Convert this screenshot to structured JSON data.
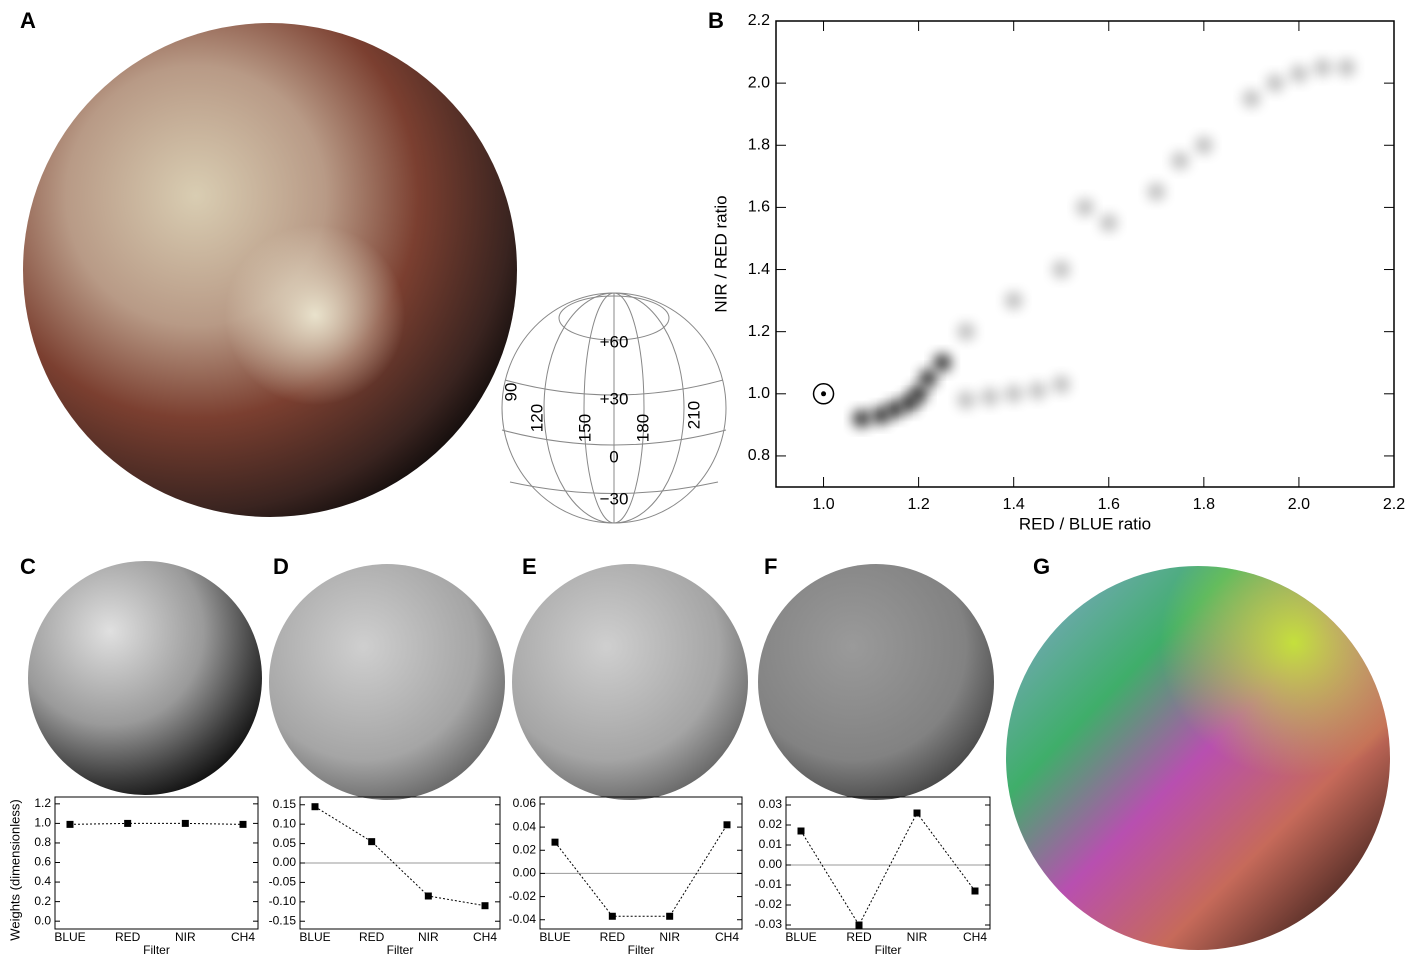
{
  "panels": {
    "a": "A",
    "b": "B",
    "c": "C",
    "d": "D",
    "e": "E",
    "f": "F",
    "g": "G"
  },
  "globe_grid": {
    "lat_labels": [
      "+60",
      "+30",
      "0",
      "−30"
    ],
    "lon_labels": [
      "90",
      "120",
      "150",
      "180",
      "210"
    ]
  },
  "chart_data": [
    {
      "type": "scatter",
      "x_label": "RED / BLUE ratio",
      "y_label": "NIR / RED ratio",
      "color": "#000000",
      "xlim": [
        0.9,
        2.2
      ],
      "ylim": [
        0.7,
        2.2
      ],
      "xticks": [
        {
          "value": 1,
          "label": "1.0"
        },
        1.2,
        1.4,
        1.6,
        1.8,
        {
          "value": 2,
          "label": "2.0"
        },
        2.2
      ],
      "yticks": [
        0.8,
        {
          "value": 1,
          "label": "1.0"
        },
        1.2,
        1.4,
        1.6,
        1.8,
        {
          "value": 2,
          "label": "2.0"
        },
        2.2
      ],
      "x": [
        1.08,
        1.12,
        1.15,
        1.18,
        1.2,
        1.22,
        1.25,
        1.3,
        1.35,
        1.4,
        1.45,
        1.5,
        1.3,
        1.4,
        1.5,
        1.6,
        1.7,
        1.8,
        1.9,
        1.95,
        2.0,
        2.05,
        2.1,
        1.55,
        1.75
      ],
      "y": [
        0.92,
        0.93,
        0.95,
        0.97,
        1.0,
        1.05,
        1.1,
        0.98,
        0.99,
        1.0,
        1.01,
        1.03,
        1.2,
        1.3,
        1.4,
        1.55,
        1.65,
        1.8,
        1.95,
        2.0,
        2.03,
        2.05,
        2.05,
        1.6,
        1.75
      ],
      "reference_point": {
        "x": 1,
        "y": 1
      }
    },
    {
      "type": "line",
      "x_label": "Filter",
      "y_label": "Weights (dimensionless)",
      "color": "#000000",
      "categories": [
        "BLUE",
        "RED",
        "NIR",
        "CH4"
      ],
      "values": [
        0.99,
        1.0,
        1.0,
        0.99
      ],
      "ylim": [
        -0.08,
        1.27
      ],
      "zero_line": false,
      "yticks": [
        {
          "value": 0,
          "label": "0.0"
        },
        0.2,
        0.4,
        0.6,
        0.8,
        {
          "value": 1,
          "label": "1.0"
        },
        1.2
      ]
    },
    {
      "type": "line",
      "x_label": "Filter",
      "color": "#000000",
      "categories": [
        "BLUE",
        "RED",
        "NIR",
        "CH4"
      ],
      "values": [
        0.145,
        0.055,
        -0.085,
        -0.11
      ],
      "ylim": [
        -0.17,
        0.17
      ],
      "zero_line": true,
      "yticks": [
        -0.15,
        {
          "value": -0.1,
          "label": "-0.10"
        },
        -0.05,
        {
          "value": 0,
          "label": "0.00"
        },
        0.05,
        {
          "value": 0.1,
          "label": "0.10"
        },
        0.15
      ]
    },
    {
      "type": "line",
      "x_label": "Filter",
      "color": "#000000",
      "categories": [
        "BLUE",
        "RED",
        "NIR",
        "CH4"
      ],
      "values": [
        0.027,
        -0.037,
        -0.037,
        0.042
      ],
      "ylim": [
        -0.048,
        0.066
      ],
      "zero_line": true,
      "yticks": [
        -0.04,
        -0.02,
        {
          "value": 0,
          "label": "0.00"
        },
        0.02,
        0.04,
        0.06
      ]
    },
    {
      "type": "line",
      "x_label": "Filter",
      "color": "#000000",
      "categories": [
        "BLUE",
        "RED",
        "NIR",
        "CH4"
      ],
      "values": [
        0.017,
        -0.03,
        0.026,
        -0.013
      ],
      "ylim": [
        -0.032,
        0.034
      ],
      "zero_line": true,
      "yticks": [
        -0.03,
        -0.02,
        -0.01,
        {
          "value": 0,
          "label": "0.00"
        },
        0.01,
        0.02,
        0.03
      ]
    }
  ]
}
